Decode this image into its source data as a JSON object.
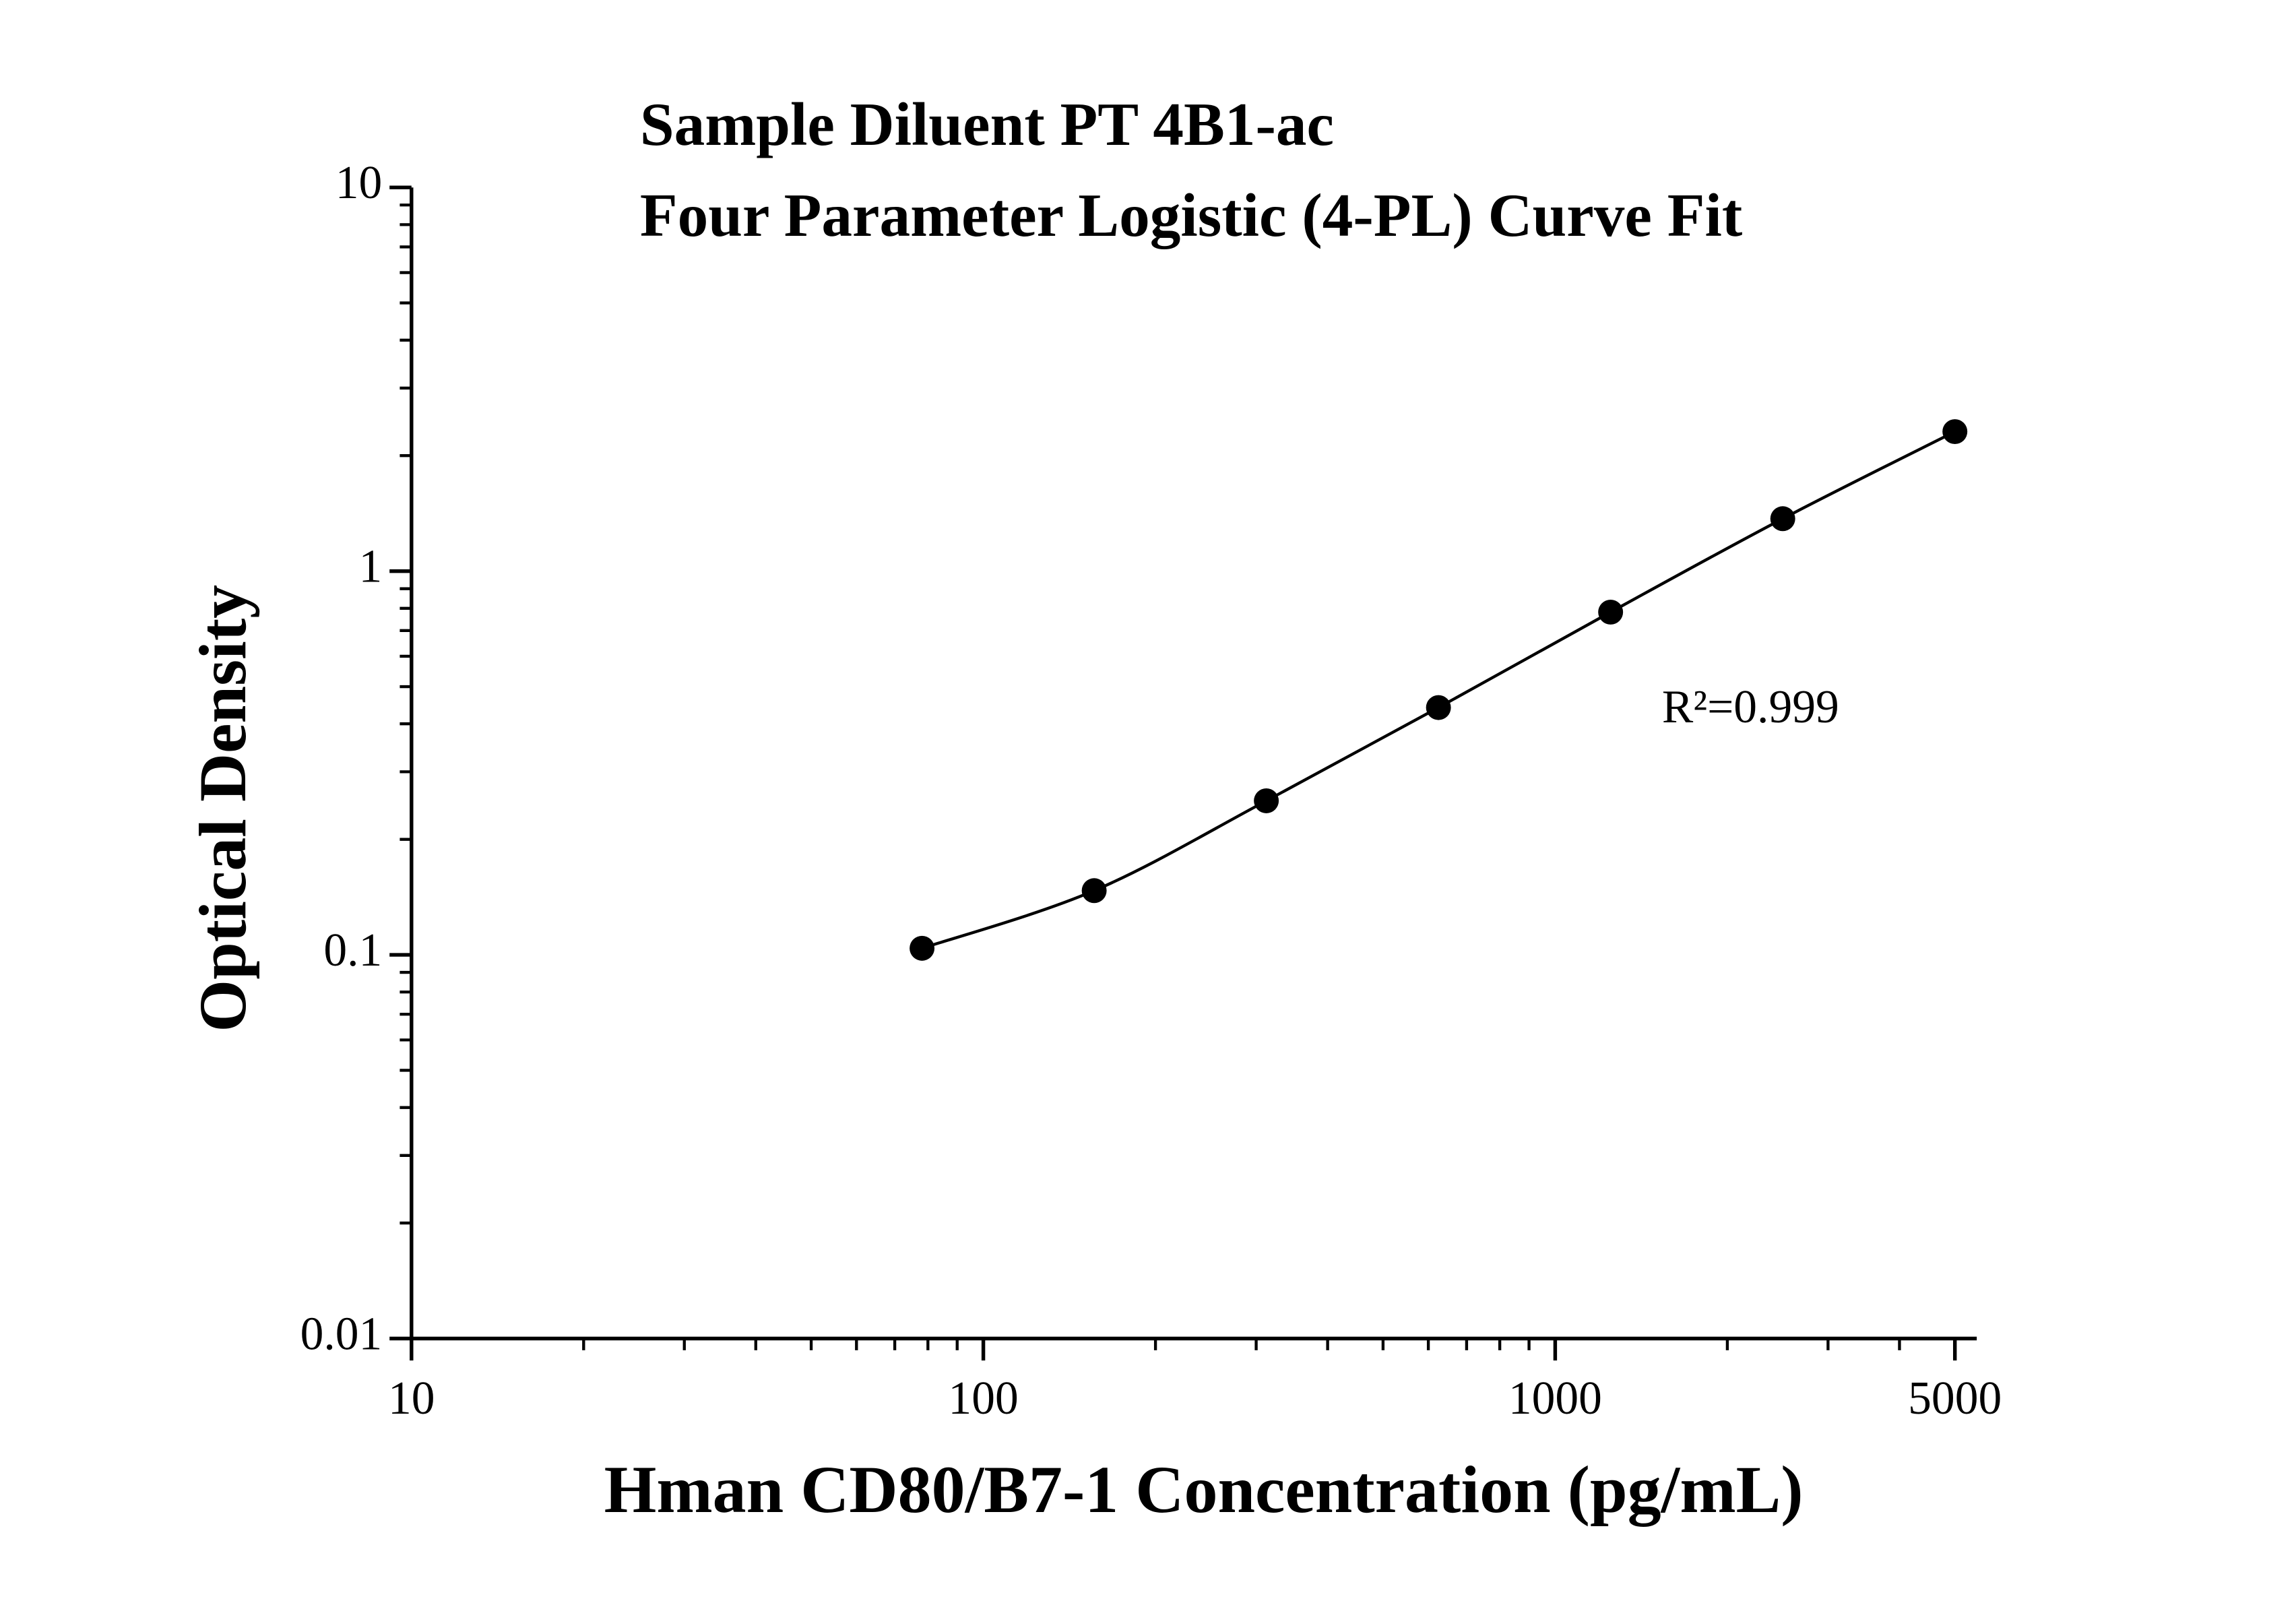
{
  "chart_data": {
    "type": "scatter",
    "title": "Sample Diluent PT 4B1-ac",
    "subtitle": "Four Parameter Logistic (4-PL) Curve Fit",
    "x_label": "Hman CD80/B7-1 Concentration (pg/mL)",
    "y_label": "Optical Density",
    "annotation": "R²=0.999",
    "x_scale": "log",
    "y_scale": "log",
    "xlim": [
      10,
      5460
    ],
    "ylim": [
      0.01,
      10
    ],
    "xticks": [
      10,
      100,
      1000,
      5000
    ],
    "yticks": [
      0.01,
      0.1,
      1,
      10
    ],
    "series": [
      {
        "color": "#000000",
        "x": [
          78.125,
          156.25,
          312.5,
          625,
          1250,
          2500,
          5000
        ],
        "values": [
          0.104,
          0.147,
          0.252,
          0.441,
          0.782,
          1.37,
          2.31
        ]
      }
    ]
  }
}
